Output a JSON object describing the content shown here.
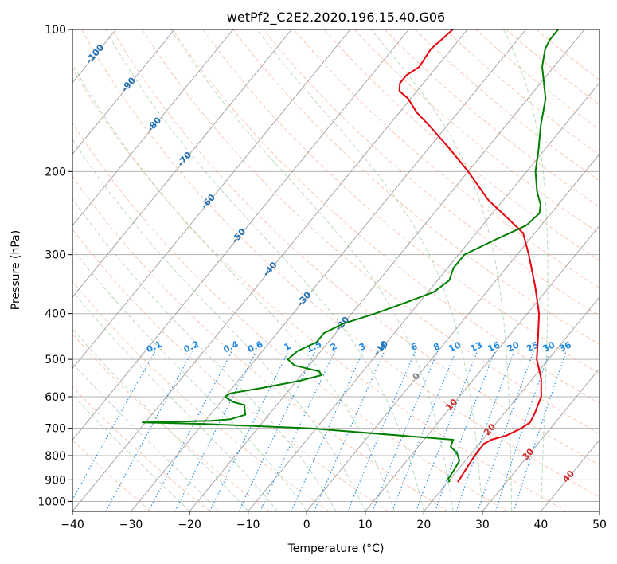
{
  "chart_data": {
    "type": "line",
    "subtype": "skew-T log-P diagram",
    "title": "wetPf2_C2E2.2020.196.15.40.G06",
    "xlabel": "Temperature (°C)",
    "ylabel": "Pressure (hPa)",
    "xlim": [
      -40,
      50
    ],
    "ylim": [
      1050,
      100
    ],
    "y_scale": "log",
    "x_ticks": [
      -40,
      -30,
      -20,
      -10,
      0,
      10,
      20,
      30,
      40,
      50
    ],
    "y_ticks": [
      100,
      200,
      300,
      400,
      500,
      600,
      700,
      800,
      900,
      1000
    ],
    "grid": true,
    "legend": "none",
    "colors": {
      "temperature": "#e8000b",
      "dewpoint": "#008000",
      "isotherm": "#9e9e9e",
      "dry_adiabat": "#f4a582",
      "moist_adiabat": "#7fbf7f",
      "mixing_ratio": "#1e88e5",
      "isotherm_label": "#1f6fb5",
      "zero_label": "#808080",
      "warm_label": "#d62728"
    },
    "isotherm_labels": [
      "-100",
      "-90",
      "-80",
      "-70",
      "-60",
      "-50",
      "-40",
      "-30",
      "-20",
      "-10",
      "0",
      "10",
      "20",
      "30",
      "40"
    ],
    "mixing_ratio_labels": [
      "0.1",
      "0.2",
      "0.4",
      "0.6",
      "1",
      "1.5",
      "2",
      "3",
      "4",
      "6",
      "8",
      "10",
      "13",
      "16",
      "20",
      "25",
      "30",
      "36"
    ],
    "series": [
      {
        "color": "red",
        "points": [
          {
            "p": 910,
            "t": 21.7
          },
          {
            "p": 870,
            "t": 21.4
          },
          {
            "p": 800,
            "t": 20.9
          },
          {
            "p": 755,
            "t": 20.8
          },
          {
            "p": 740,
            "t": 21.5
          },
          {
            "p": 725,
            "t": 23.5
          },
          {
            "p": 700,
            "t": 25.0
          },
          {
            "p": 680,
            "t": 25.7
          },
          {
            "p": 650,
            "t": 25.2
          },
          {
            "p": 600,
            "t": 24.0
          },
          {
            "p": 550,
            "t": 21.5
          },
          {
            "p": 500,
            "t": 18.0
          },
          {
            "p": 450,
            "t": 15.2
          },
          {
            "p": 400,
            "t": 12.0
          },
          {
            "p": 350,
            "t": 7.5
          },
          {
            "p": 300,
            "t": 2.0
          },
          {
            "p": 270,
            "t": -2.0
          },
          {
            "p": 250,
            "t": -7.0
          },
          {
            "p": 230,
            "t": -12.5
          },
          {
            "p": 200,
            "t": -20.0
          },
          {
            "p": 180,
            "t": -26.0
          },
          {
            "p": 160,
            "t": -33.0
          },
          {
            "p": 150,
            "t": -37.0
          },
          {
            "p": 140,
            "t": -40.5
          },
          {
            "p": 135,
            "t": -43.0
          },
          {
            "p": 130,
            "t": -44.0
          },
          {
            "p": 125,
            "t": -44.0
          },
          {
            "p": 120,
            "t": -43.0
          },
          {
            "p": 110,
            "t": -43.5
          },
          {
            "p": 105,
            "t": -43.0
          },
          {
            "p": 100,
            "t": -42.5
          }
        ]
      },
      {
        "color": "green",
        "points": [
          {
            "p": 910,
            "t": 20.3
          },
          {
            "p": 895,
            "t": 19.6
          },
          {
            "p": 860,
            "t": 19.4
          },
          {
            "p": 820,
            "t": 19.0
          },
          {
            "p": 790,
            "t": 17.5
          },
          {
            "p": 765,
            "t": 15.5
          },
          {
            "p": 740,
            "t": 15.0
          },
          {
            "p": 700,
            "t": -11.0
          },
          {
            "p": 685,
            "t": -30.0
          },
          {
            "p": 680,
            "t": -40.5
          },
          {
            "p": 675,
            "t": -29.0
          },
          {
            "p": 670,
            "t": -26.0
          },
          {
            "p": 655,
            "t": -24.0
          },
          {
            "p": 640,
            "t": -24.8
          },
          {
            "p": 625,
            "t": -25.5
          },
          {
            "p": 615,
            "t": -28.0
          },
          {
            "p": 600,
            "t": -30.0
          },
          {
            "p": 590,
            "t": -29.5
          },
          {
            "p": 575,
            "t": -25.0
          },
          {
            "p": 555,
            "t": -19.5
          },
          {
            "p": 540,
            "t": -16.5
          },
          {
            "p": 530,
            "t": -17.5
          },
          {
            "p": 515,
            "t": -22.5
          },
          {
            "p": 500,
            "t": -24.5
          },
          {
            "p": 480,
            "t": -24.0
          },
          {
            "p": 460,
            "t": -22.0
          },
          {
            "p": 440,
            "t": -22.0
          },
          {
            "p": 420,
            "t": -20.0
          },
          {
            "p": 400,
            "t": -16.0
          },
          {
            "p": 380,
            "t": -12.5
          },
          {
            "p": 360,
            "t": -9.0
          },
          {
            "p": 340,
            "t": -8.0
          },
          {
            "p": 320,
            "t": -9.0
          },
          {
            "p": 300,
            "t": -9.0
          },
          {
            "p": 280,
            "t": -6.0
          },
          {
            "p": 260,
            "t": -2.5
          },
          {
            "p": 245,
            "t": -2.0
          },
          {
            "p": 235,
            "t": -3.0
          },
          {
            "p": 220,
            "t": -5.5
          },
          {
            "p": 200,
            "t": -8.5
          },
          {
            "p": 180,
            "t": -11.0
          },
          {
            "p": 160,
            "t": -14.0
          },
          {
            "p": 140,
            "t": -17.0
          },
          {
            "p": 120,
            "t": -22.0
          },
          {
            "p": 110,
            "t": -24.0
          },
          {
            "p": 105,
            "t": -24.5
          },
          {
            "p": 100,
            "t": -24.5
          }
        ]
      }
    ]
  }
}
